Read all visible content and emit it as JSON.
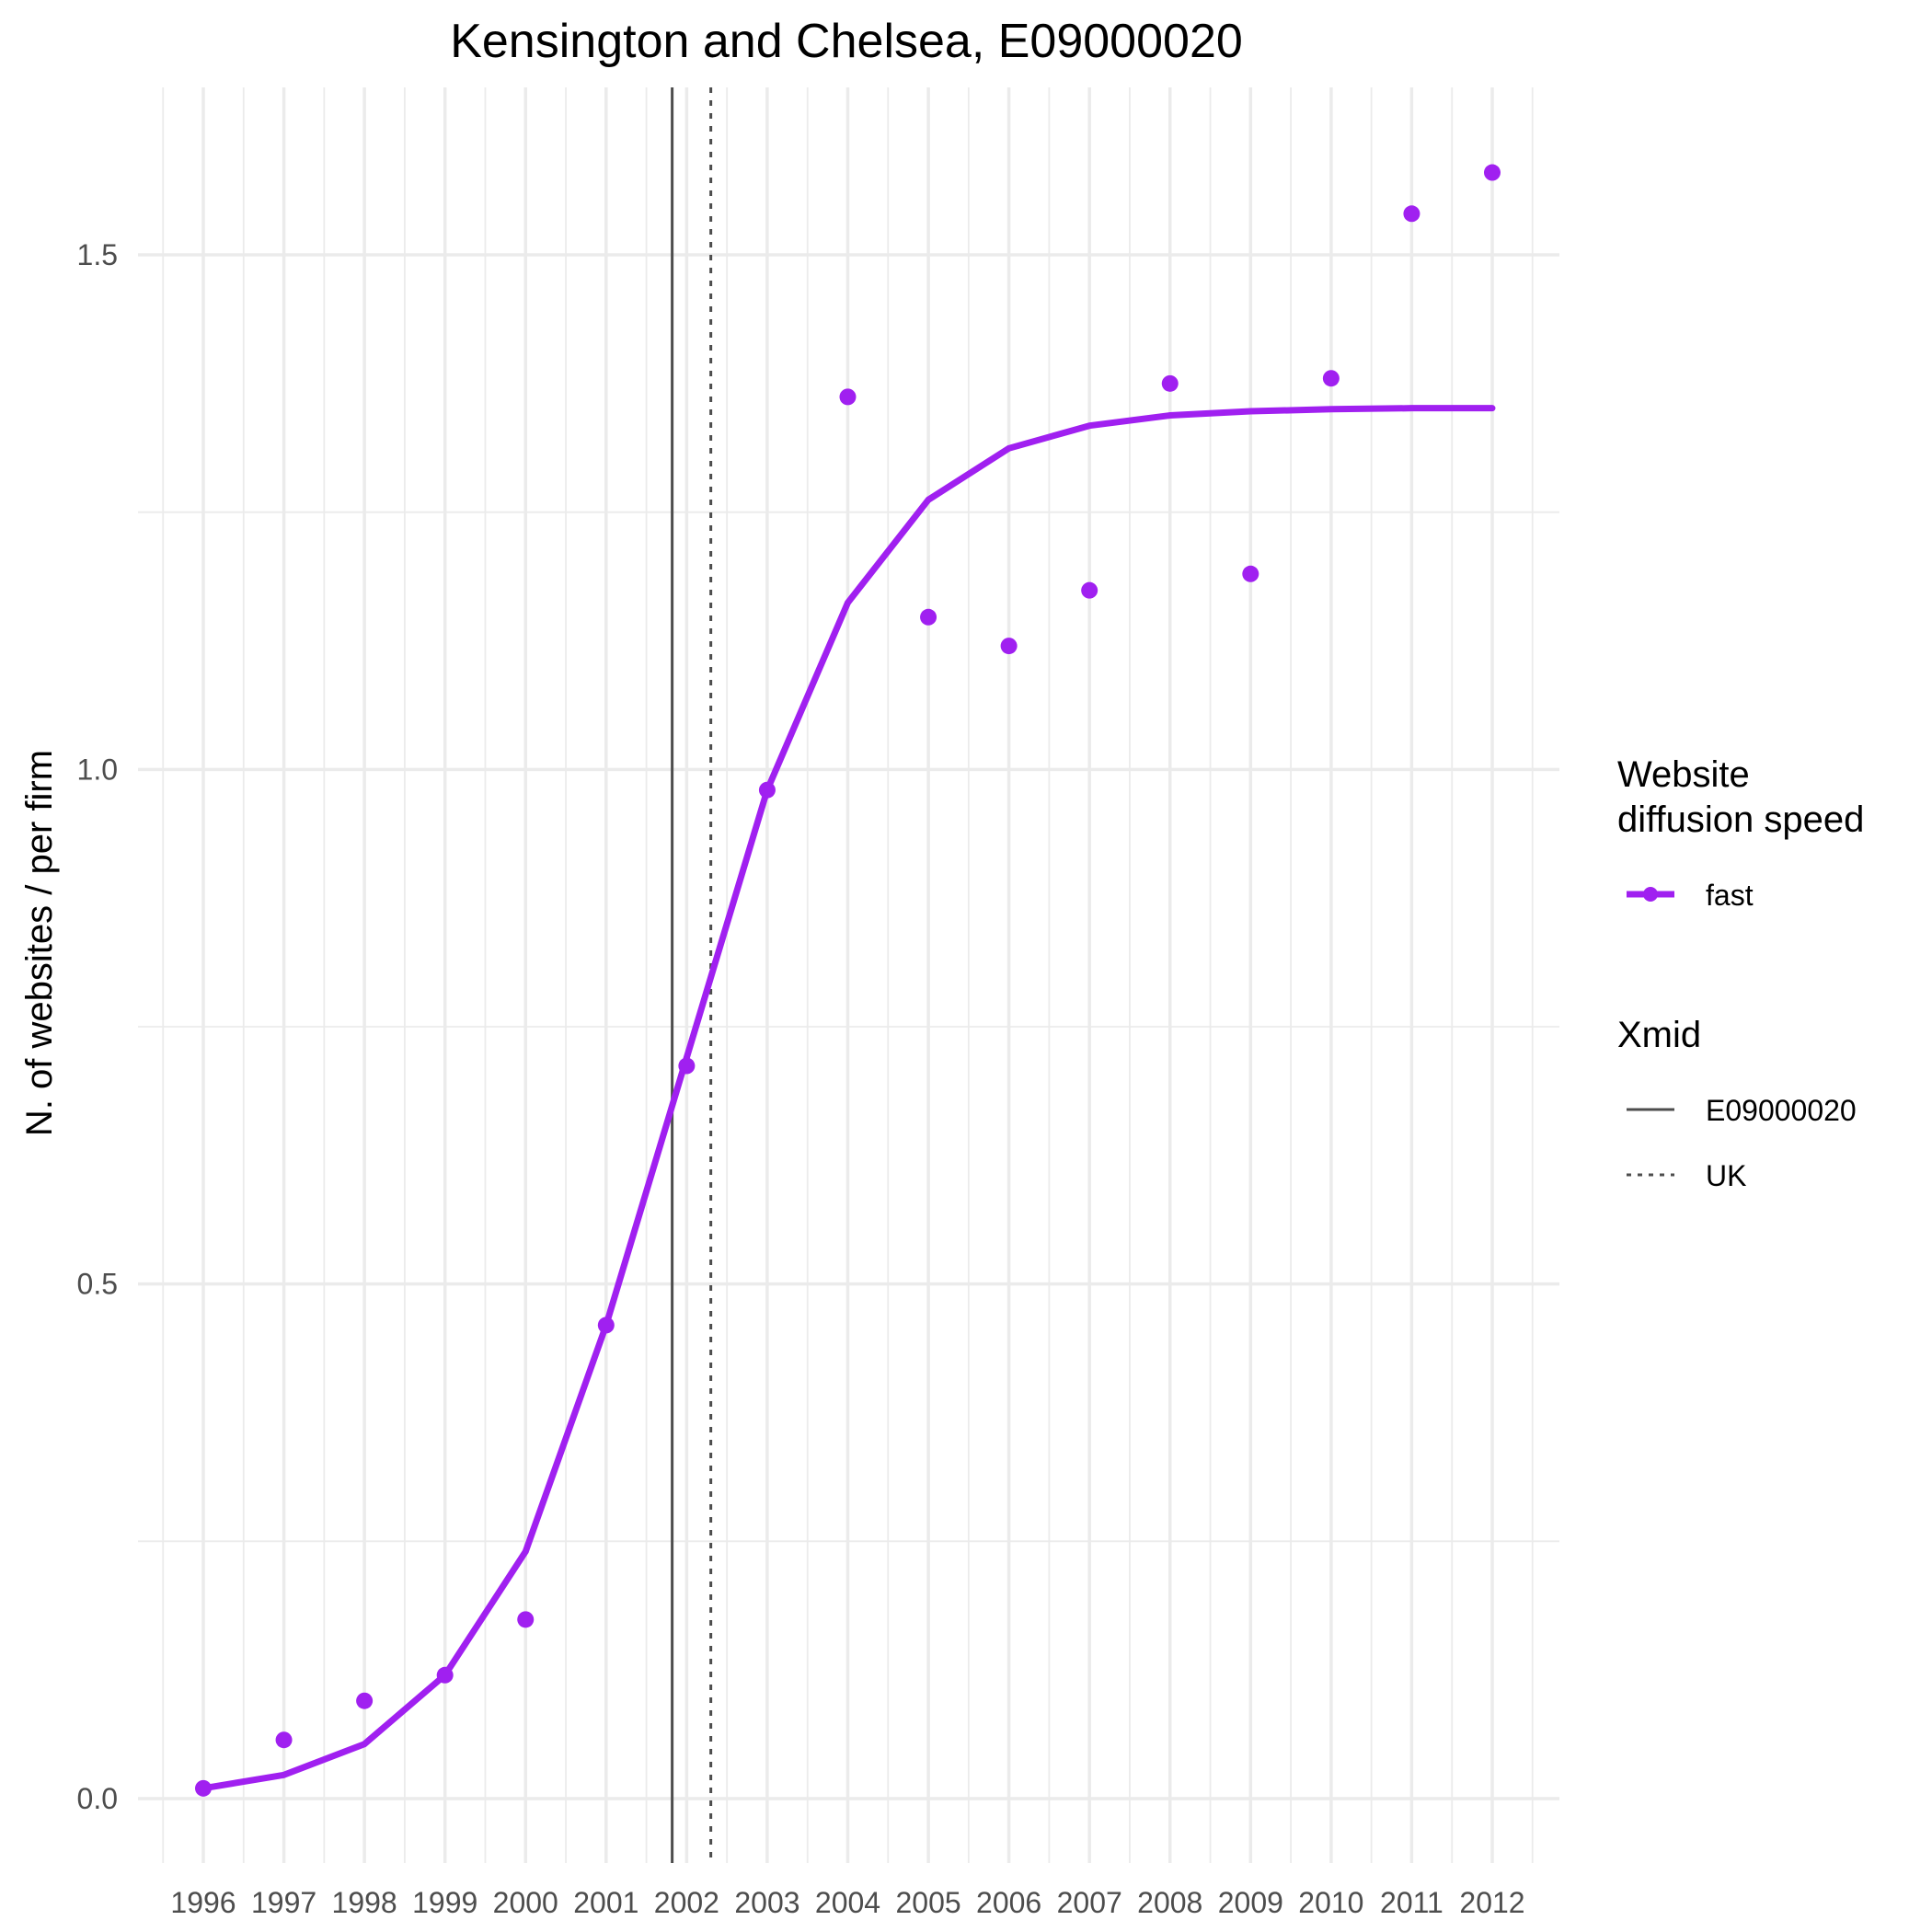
{
  "chart_data": {
    "type": "line",
    "title": "Kensington and Chelsea, E09000020",
    "xlabel": "",
    "ylabel": "N. of websites / per firm",
    "x": [
      1996,
      1997,
      1998,
      1999,
      2000,
      2001,
      2002,
      2003,
      2004,
      2005,
      2006,
      2007,
      2008,
      2009,
      2010,
      2011,
      2012
    ],
    "x_tick_labels": [
      "1996",
      "1997",
      "1998",
      "1999",
      "2000",
      "2001",
      "2002",
      "2003",
      "2004",
      "2005",
      "2006",
      "2007",
      "2008",
      "2009",
      "2010",
      "2011",
      "2012"
    ],
    "y_ticks": [
      0.0,
      0.5,
      1.0,
      1.5
    ],
    "y_tick_labels": [
      "0.0",
      "0.5",
      "1.0",
      "1.5"
    ],
    "xlim": [
      1994.5,
      2013.5
    ],
    "ylim": [
      -0.07,
      1.65
    ],
    "grid": true,
    "series": [
      {
        "name": "fast",
        "kind": "line",
        "color": "#a020f0",
        "x": [
          1996,
          1997,
          1998,
          1999,
          2000,
          2001,
          2002,
          2003,
          2004,
          2005,
          2006,
          2007,
          2008,
          2009,
          2010,
          2011,
          2012
        ],
        "values": [
          0.01,
          0.023,
          0.053,
          0.12,
          0.24,
          0.46,
          0.72,
          0.98,
          1.162,
          1.262,
          1.312,
          1.334,
          1.344,
          1.348,
          1.35,
          1.351,
          1.351
        ]
      },
      {
        "name": "fast",
        "kind": "points",
        "color": "#a020f0",
        "x": [
          1996,
          1997,
          1998,
          1999,
          2000,
          2001,
          2002,
          2003,
          2004,
          2005,
          2006,
          2007,
          2008,
          2009,
          2010,
          2011,
          2012
        ],
        "values": [
          0.01,
          0.057,
          0.095,
          0.12,
          0.174,
          0.46,
          0.712,
          0.98,
          1.362,
          1.148,
          1.12,
          1.174,
          1.375,
          1.19,
          1.38,
          1.54,
          1.58
        ]
      }
    ],
    "vlines": [
      {
        "name": "E09000020",
        "x": 2001.82,
        "style": "solid",
        "color": "#4d4d4d"
      },
      {
        "name": "UK",
        "x": 2002.3,
        "style": "dotted",
        "color": "#4d4d4d"
      }
    ],
    "legend": {
      "placement": "right",
      "groups": [
        {
          "title_lines": [
            "Website",
            "diffusion speed"
          ],
          "entries": [
            {
              "label": "fast",
              "kind": "line-point",
              "color": "#a020f0"
            }
          ]
        },
        {
          "title_lines": [
            "Xmid"
          ],
          "entries": [
            {
              "label": "E09000020",
              "kind": "solid-line",
              "color": "#4d4d4d"
            },
            {
              "label": "UK",
              "kind": "dotted-line",
              "color": "#4d4d4d"
            }
          ]
        }
      ]
    }
  }
}
